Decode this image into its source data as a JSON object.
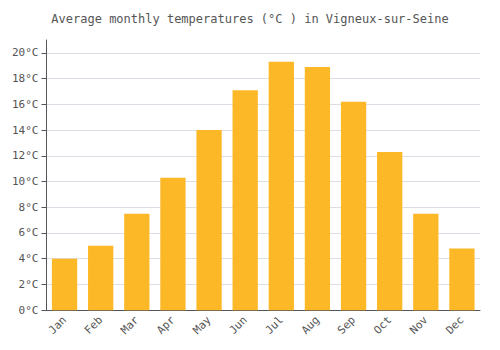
{
  "chart_data": {
    "type": "bar",
    "title": "Average monthly temperatures (°C ) in Vigneux-sur-Seine",
    "categories": [
      "Jan",
      "Feb",
      "Mar",
      "Apr",
      "May",
      "Jun",
      "Jul",
      "Aug",
      "Sep",
      "Oct",
      "Nov",
      "Dec"
    ],
    "values": [
      4.0,
      5.0,
      7.5,
      10.3,
      14.0,
      17.1,
      19.3,
      18.9,
      16.2,
      12.3,
      7.5,
      4.8
    ],
    "color": "#FDB827",
    "ylim": [
      0,
      21
    ],
    "yticks": [
      {
        "value": 0,
        "label": "0°C"
      },
      {
        "value": 2,
        "label": "2°C"
      },
      {
        "value": 4,
        "label": "4°C"
      },
      {
        "value": 6,
        "label": "6°C"
      },
      {
        "value": 8,
        "label": "8°C"
      },
      {
        "value": 10,
        "label": "10°C"
      },
      {
        "value": 12,
        "label": "12°C"
      },
      {
        "value": 14,
        "label": "14°C"
      },
      {
        "value": 16,
        "label": "16°C"
      },
      {
        "value": 18,
        "label": "18°C"
      },
      {
        "value": 20,
        "label": "20°C"
      }
    ],
    "grid": true
  }
}
